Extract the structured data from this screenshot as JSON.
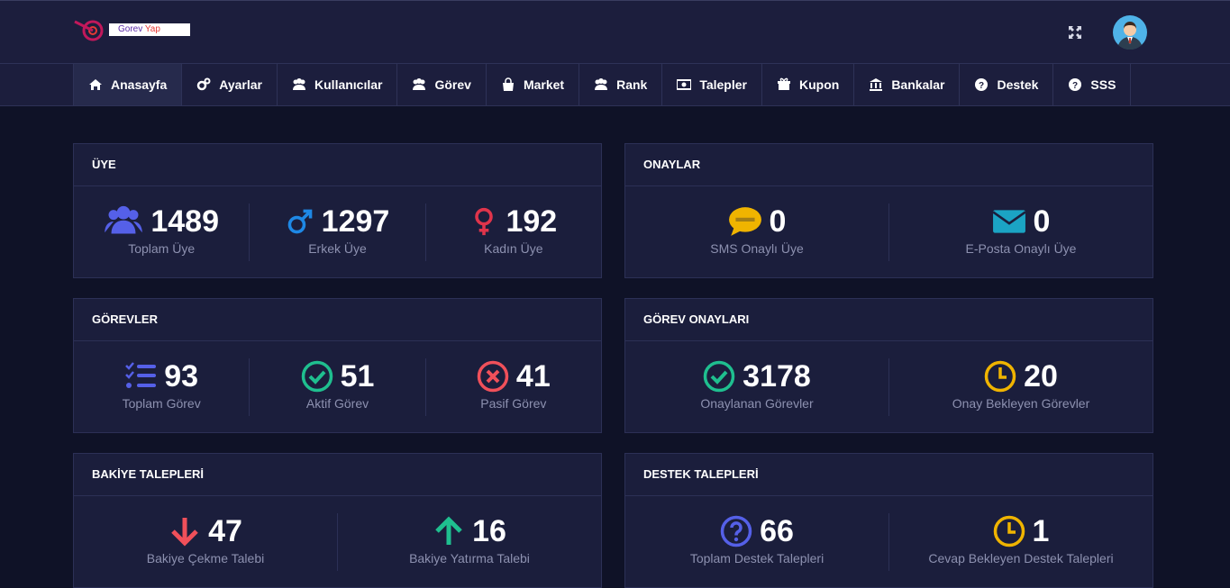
{
  "header": {
    "logo": {
      "first": "Gorev",
      "second": "Yap"
    }
  },
  "nav": [
    "Anasayfa",
    "Ayarlar",
    "Kullanıcılar",
    "Görev",
    "Market",
    "Rank",
    "Talepler",
    "Kupon",
    "Bankalar",
    "Destek",
    "SSS"
  ],
  "panels": [
    {
      "title": "ÜYE",
      "stats": [
        {
          "value": 1489,
          "label": "Toplam Üye"
        },
        {
          "value": 1297,
          "label": "Erkek Üye"
        },
        {
          "value": 192,
          "label": "Kadın Üye"
        }
      ]
    },
    {
      "title": "ONAYLAR",
      "stats": [
        {
          "value": 0,
          "label": "SMS Onaylı Üye"
        },
        {
          "value": 0,
          "label": "E-Posta Onaylı Üye"
        }
      ]
    },
    {
      "title": "GÖREVLER",
      "stats": [
        {
          "value": 93,
          "label": "Toplam Görev"
        },
        {
          "value": 51,
          "label": "Aktif Görev"
        },
        {
          "value": 41,
          "label": "Pasif Görev"
        }
      ]
    },
    {
      "title": "GÖREV ONAYLARI",
      "stats": [
        {
          "value": 3178,
          "label": "Onaylanan Görevler"
        },
        {
          "value": 20,
          "label": "Onay Bekleyen Görevler"
        }
      ]
    },
    {
      "title": "BAKİYE TALEPLERİ",
      "stats": [
        {
          "value": 47,
          "label": "Bakiye Çekme Talebi"
        },
        {
          "value": 16,
          "label": "Bakiye Yatırma Talebi"
        }
      ]
    },
    {
      "title": "DESTEK TALEPLERİ",
      "stats": [
        {
          "value": 66,
          "label": "Toplam Destek Talepleri"
        },
        {
          "value": 1,
          "label": "Cevap Bekleyen Destek Talepleri"
        }
      ]
    }
  ]
}
